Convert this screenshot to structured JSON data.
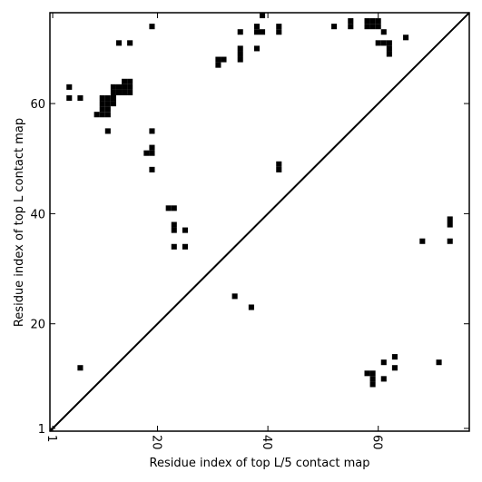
{
  "chart_data": {
    "type": "scatter",
    "marker": "square",
    "color": "#000000",
    "xlabel": "Residue index of top L/5 contact map",
    "ylabel": "Residue index of top L contact map",
    "xlim": [
      0.5,
      76.5
    ],
    "ylim": [
      0.5,
      76.5
    ],
    "xticks": [
      1,
      20,
      40,
      60
    ],
    "yticks": [
      1,
      20,
      40,
      60
    ],
    "diagonal": true,
    "x": [
      19,
      13,
      15,
      4,
      4,
      6,
      9,
      10,
      11,
      10,
      11,
      10,
      11,
      10,
      11,
      12,
      12,
      12,
      13,
      13,
      12,
      14,
      14,
      15,
      15,
      14,
      15,
      11,
      19,
      19,
      18,
      19,
      19,
      22,
      23,
      23,
      23,
      25,
      23,
      25,
      31,
      31,
      32,
      35,
      35,
      35,
      35,
      38,
      38,
      39,
      39,
      38,
      42,
      42,
      42,
      42,
      52,
      55,
      55,
      58,
      59,
      60,
      58,
      59,
      60,
      61,
      60,
      61,
      62,
      62,
      62,
      65,
      34,
      37,
      68,
      73,
      73,
      73,
      6,
      63,
      61,
      63,
      71,
      58,
      59,
      59,
      59,
      61
    ],
    "y": [
      74,
      71,
      71,
      63,
      61,
      61,
      58,
      58,
      58,
      59,
      59,
      60,
      60,
      61,
      61,
      60,
      61,
      62,
      62,
      63,
      63,
      62,
      63,
      62,
      63,
      64,
      64,
      55,
      55,
      52,
      51,
      51,
      48,
      41,
      41,
      38,
      37,
      37,
      34,
      34,
      67,
      68,
      68,
      73,
      70,
      69,
      68,
      74,
      73,
      73,
      76,
      70,
      74,
      73,
      49,
      48,
      74,
      75,
      74,
      75,
      75,
      75,
      74,
      74,
      74,
      73,
      71,
      71,
      71,
      70,
      69,
      72,
      25,
      23,
      35,
      39,
      38,
      35,
      12,
      14,
      13,
      12,
      13,
      11,
      11,
      10,
      9,
      10
    ]
  }
}
